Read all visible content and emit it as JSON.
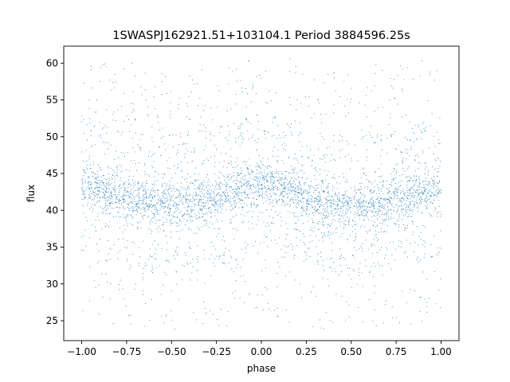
{
  "chart_data": {
    "type": "scatter",
    "title": "1SWASPJ162921.51+103104.1 Period 3884596.25s",
    "xlabel": "phase",
    "ylabel": "flux",
    "xlim": [
      -1.1,
      1.1
    ],
    "ylim": [
      22.3,
      62.3
    ],
    "xticks": [
      "−1.00",
      "−0.75",
      "−0.50",
      "−0.25",
      "0.00",
      "0.25",
      "0.50",
      "0.75",
      "1.00"
    ],
    "xtick_values": [
      -1.0,
      -0.75,
      -0.5,
      -0.25,
      0.0,
      0.25,
      0.5,
      0.75,
      1.0
    ],
    "yticks": [
      "25",
      "30",
      "35",
      "40",
      "45",
      "50",
      "55",
      "60"
    ],
    "ytick_values": [
      25,
      30,
      35,
      40,
      45,
      50,
      55,
      60
    ],
    "grid": false,
    "legend": "none",
    "marker_color": "#1f77b4",
    "x_range": [
      -1.0,
      1.0
    ],
    "profile": {
      "phase": [
        -1.0,
        -0.9,
        -0.8,
        -0.7,
        -0.6,
        -0.5,
        -0.4,
        -0.3,
        -0.2,
        -0.1,
        0.0,
        0.1,
        0.2,
        0.3,
        0.4,
        0.5,
        0.6,
        0.7,
        0.8,
        0.9,
        1.0
      ],
      "flux_center": [
        43.5,
        42.5,
        41.8,
        41.3,
        41.0,
        41.0,
        41.2,
        41.6,
        42.2,
        43.0,
        43.8,
        43.2,
        42.3,
        41.3,
        40.8,
        40.6,
        40.9,
        41.2,
        41.8,
        42.6,
        43.5
      ],
      "flux_band_halfwidth": 3.0
    }
  }
}
